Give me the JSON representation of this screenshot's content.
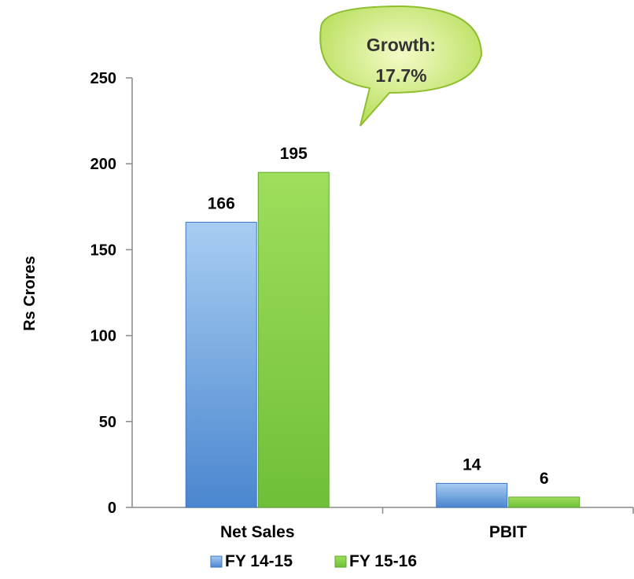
{
  "chart_data": {
    "type": "bar",
    "categories": [
      "Net Sales",
      "PBIT"
    ],
    "series": [
      {
        "name": "FY 14-15",
        "values": [
          166,
          14
        ],
        "color": "#5B9BD5"
      },
      {
        "name": "FY 15-16",
        "values": [
          195,
          6
        ],
        "color": "#8FD14F"
      }
    ],
    "ylabel": "Rs Crores",
    "ylim": [
      0,
      250
    ],
    "yticks": [
      0,
      50,
      100,
      150,
      200,
      250
    ],
    "grid": false,
    "legend": "bottom",
    "annotation": {
      "line1": "Growth:",
      "line2": "17.7%"
    }
  }
}
